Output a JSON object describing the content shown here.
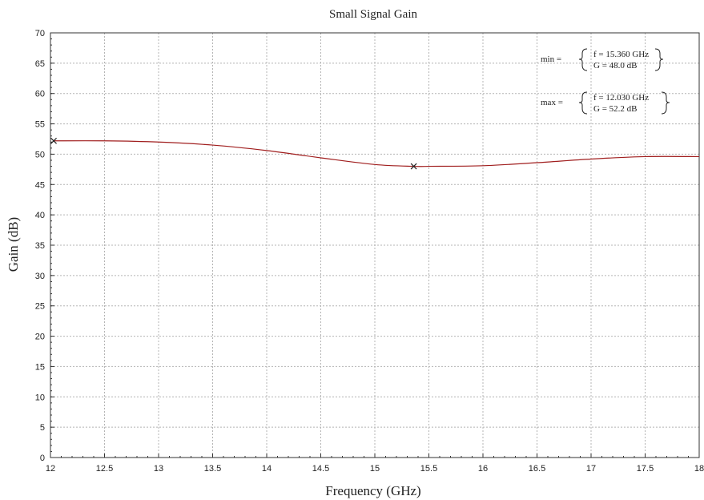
{
  "chart_data": {
    "type": "line",
    "title": "Small Signal Gain",
    "xlabel": "Frequency (GHz)",
    "ylabel": "Gain (dB)",
    "xlim": [
      12,
      18
    ],
    "ylim": [
      0,
      70
    ],
    "x_ticks": [
      "12",
      "12.5",
      "13",
      "13.5",
      "14",
      "14.5",
      "15",
      "15.5",
      "16",
      "16.5",
      "17",
      "17.5",
      "18"
    ],
    "y_ticks": [
      "0",
      "5",
      "10",
      "15",
      "20",
      "25",
      "30",
      "35",
      "40",
      "45",
      "50",
      "55",
      "60",
      "65",
      "70"
    ],
    "grid": true,
    "series": [
      {
        "color": "#a01e1e",
        "x": [
          12.03,
          12.5,
          13.0,
          13.5,
          14.0,
          14.5,
          15.0,
          15.36,
          15.5,
          16.0,
          16.5,
          17.0,
          17.5,
          18.0
        ],
        "y": [
          52.2,
          52.2,
          52.0,
          51.5,
          50.6,
          49.4,
          48.3,
          48.0,
          48.0,
          48.1,
          48.6,
          49.2,
          49.6,
          49.6
        ]
      }
    ],
    "markers": [
      {
        "name": "max",
        "x": 12.03,
        "y": 52.2
      },
      {
        "name": "min",
        "x": 15.36,
        "y": 48.0
      }
    ],
    "annotations": {
      "min_label": "min =",
      "min_f": "f = 15.360 GHz",
      "min_g": "G = 48.0 dB",
      "max_label": "max =",
      "max_f": "f = 12.030 GHz",
      "max_g": "G = 52.2 dB"
    }
  }
}
